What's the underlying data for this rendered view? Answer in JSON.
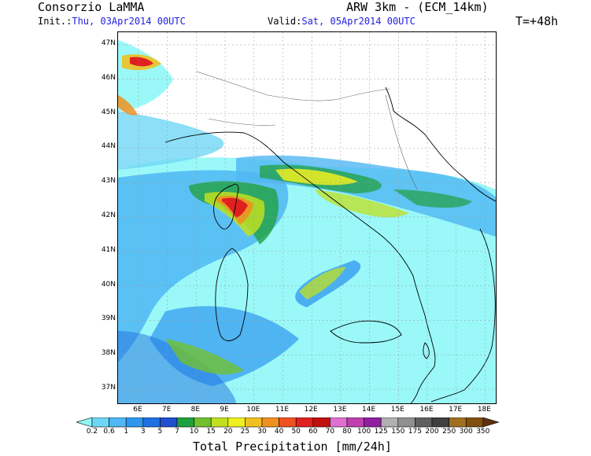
{
  "header": {
    "organization": "Consorzio LaMMA",
    "model": "ARW 3km - (ECM_14km)",
    "init_label": "Init.:",
    "init_value": "Thu, 03Apr2014 00UTC",
    "valid_label": "Valid:",
    "valid_value": "Sat, 05Apr2014 00UTC",
    "forecast_step": "T=+48h"
  },
  "map": {
    "latitude_labels": [
      "47N",
      "46N",
      "45N",
      "44N",
      "43N",
      "42N",
      "41N",
      "40N",
      "39N",
      "38N",
      "37N"
    ],
    "longitude_labels": [
      "6E",
      "7E",
      "8E",
      "9E",
      "10E",
      "11E",
      "12E",
      "13E",
      "14E",
      "15E",
      "16E",
      "17E",
      "18E"
    ]
  },
  "legend": {
    "title": "Total Precipitation [mm/24h]",
    "ticks": [
      "0.2",
      "0.6",
      "1",
      "3",
      "5",
      "7",
      "10",
      "15",
      "20",
      "25",
      "30",
      "40",
      "50",
      "60",
      "70",
      "80",
      "100",
      "125",
      "150",
      "175",
      "200",
      "250",
      "300",
      "350"
    ],
    "colors": [
      "#8ff7f7",
      "#6fd7f5",
      "#4fb7f3",
      "#2f97f0",
      "#2070e0",
      "#2050d0",
      "#20a040",
      "#70c030",
      "#c0e020",
      "#f0f020",
      "#f0c020",
      "#f09020",
      "#f05020",
      "#e02020",
      "#c01010",
      "#e070d0",
      "#c040b0",
      "#9020a0",
      "#b0b0b0",
      "#909090",
      "#606060",
      "#404040",
      "#a07020",
      "#805010",
      "#603010"
    ]
  }
}
